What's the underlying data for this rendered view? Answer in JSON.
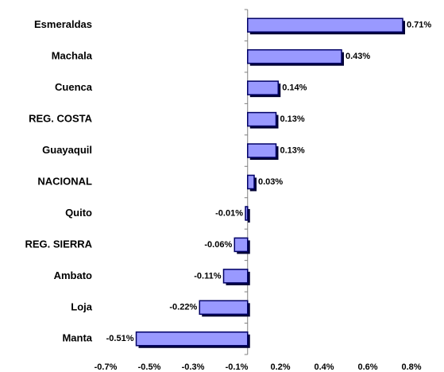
{
  "chart_data": {
    "type": "bar",
    "orientation": "horizontal",
    "categories": [
      "Esmeraldas",
      "Machala",
      "Cuenca",
      "REG. COSTA",
      "Guayaquil",
      "NACIONAL",
      "Quito",
      "REG. SIERRA",
      "Ambato",
      "Loja",
      "Manta"
    ],
    "values": [
      0.71,
      0.43,
      0.14,
      0.13,
      0.13,
      0.03,
      -0.01,
      -0.06,
      -0.11,
      -0.22,
      -0.51
    ],
    "value_labels": [
      "0.71%",
      "0.43%",
      "0.14%",
      "0.13%",
      "0.13%",
      "0.03%",
      "-0.01%",
      "-0.06%",
      "-0.11%",
      "-0.22%",
      "-0.51%"
    ],
    "color": "#9999ff",
    "xlim": [
      -0.65,
      0.75
    ],
    "xticks": [
      {
        "value": -0.65,
        "label": "-0.7%"
      },
      {
        "value": -0.45,
        "label": "-0.5%"
      },
      {
        "value": -0.25,
        "label": "-0.3%"
      },
      {
        "value": -0.05,
        "label": "-0.1%"
      },
      {
        "value": 0.15,
        "label": "0.2%"
      },
      {
        "value": 0.35,
        "label": "0.4%"
      },
      {
        "value": 0.55,
        "label": "0.6%"
      },
      {
        "value": 0.75,
        "label": "0.8%"
      }
    ],
    "grid": false
  }
}
